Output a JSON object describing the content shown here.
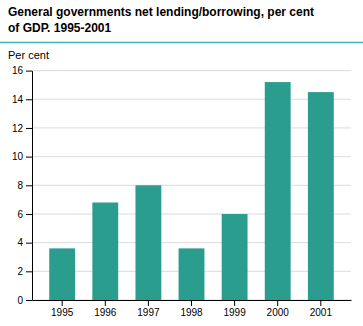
{
  "chart_data": {
    "type": "bar",
    "title": "General governments net lending/borrowing, per cent\nof GDP. 1995-2001",
    "ylabel": "Per cent",
    "categories": [
      "1995",
      "1996",
      "1997",
      "1998",
      "1999",
      "2000",
      "2001"
    ],
    "values": [
      3.6,
      6.8,
      8.0,
      3.6,
      6.0,
      15.2,
      14.5
    ],
    "color": "#2a9d8f",
    "ylim": [
      0,
      16
    ],
    "yticks": [
      0,
      2,
      4,
      6,
      8,
      10,
      12,
      14,
      16
    ],
    "grid": true
  }
}
